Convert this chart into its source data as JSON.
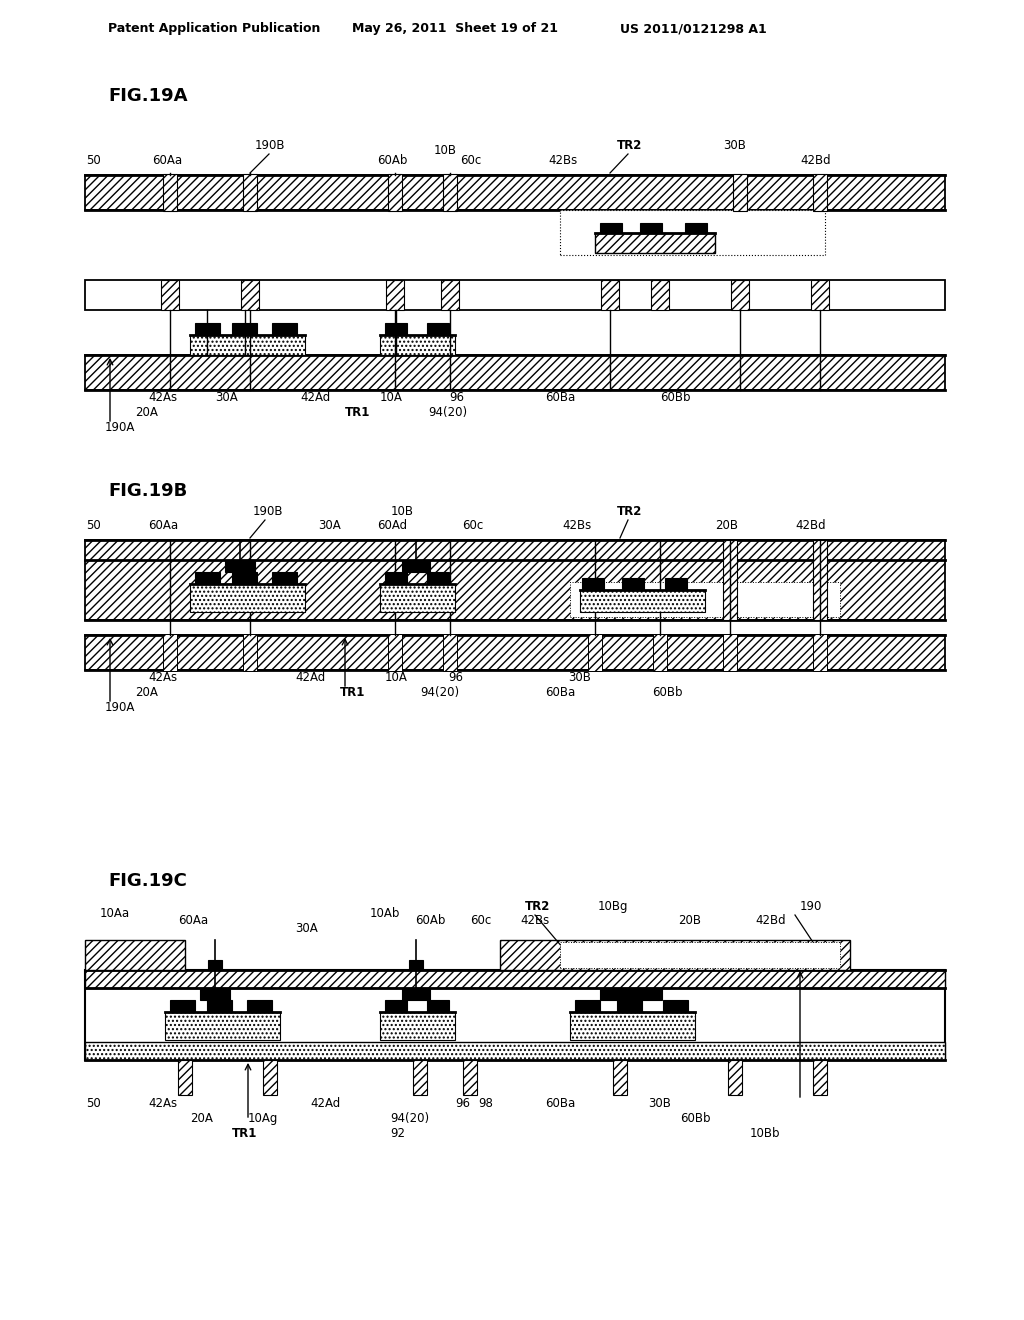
{
  "bg_color": "#ffffff",
  "header_left": "Patent Application Publication",
  "header_mid": "May 26, 2011  Sheet 19 of 21",
  "header_right": "US 2011/0121298 A1"
}
